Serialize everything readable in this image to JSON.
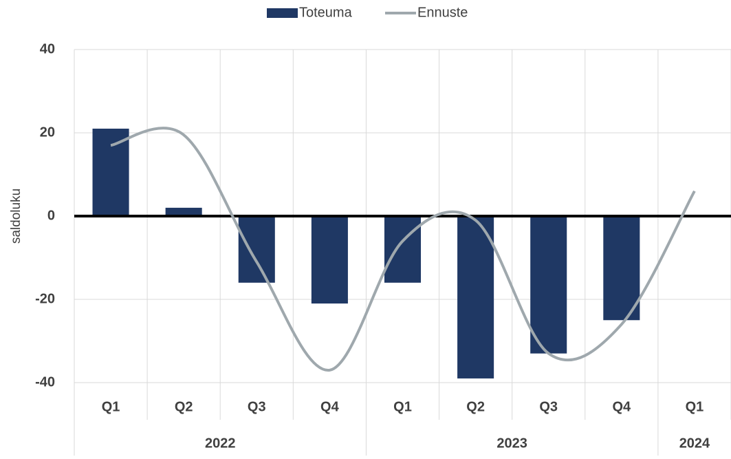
{
  "chart_data": {
    "type": "bar_line",
    "y_label": "saldoluku",
    "categories": [
      "Q1",
      "Q2",
      "Q3",
      "Q4",
      "Q1",
      "Q2",
      "Q3",
      "Q4",
      "Q1"
    ],
    "category_groups": [
      {
        "name": "2022",
        "count": 4
      },
      {
        "name": "2023",
        "count": 4
      },
      {
        "name": "2024",
        "count": 1
      }
    ],
    "series": [
      {
        "name": "Toteuma",
        "type": "bar",
        "color": "#1f3864",
        "values": [
          21,
          2,
          -16,
          -21,
          -16,
          -39,
          -33,
          -25,
          null
        ]
      },
      {
        "name": "Ennuste",
        "type": "line",
        "color": "#9fa8ad",
        "values": [
          17,
          19.5,
          -11,
          -37,
          -6,
          -1,
          -33,
          -26,
          6
        ]
      }
    ],
    "ylim": [
      -40,
      40
    ],
    "yticks": [
      -40,
      -20,
      0,
      20,
      40
    ],
    "grid": true,
    "legend": "top"
  }
}
